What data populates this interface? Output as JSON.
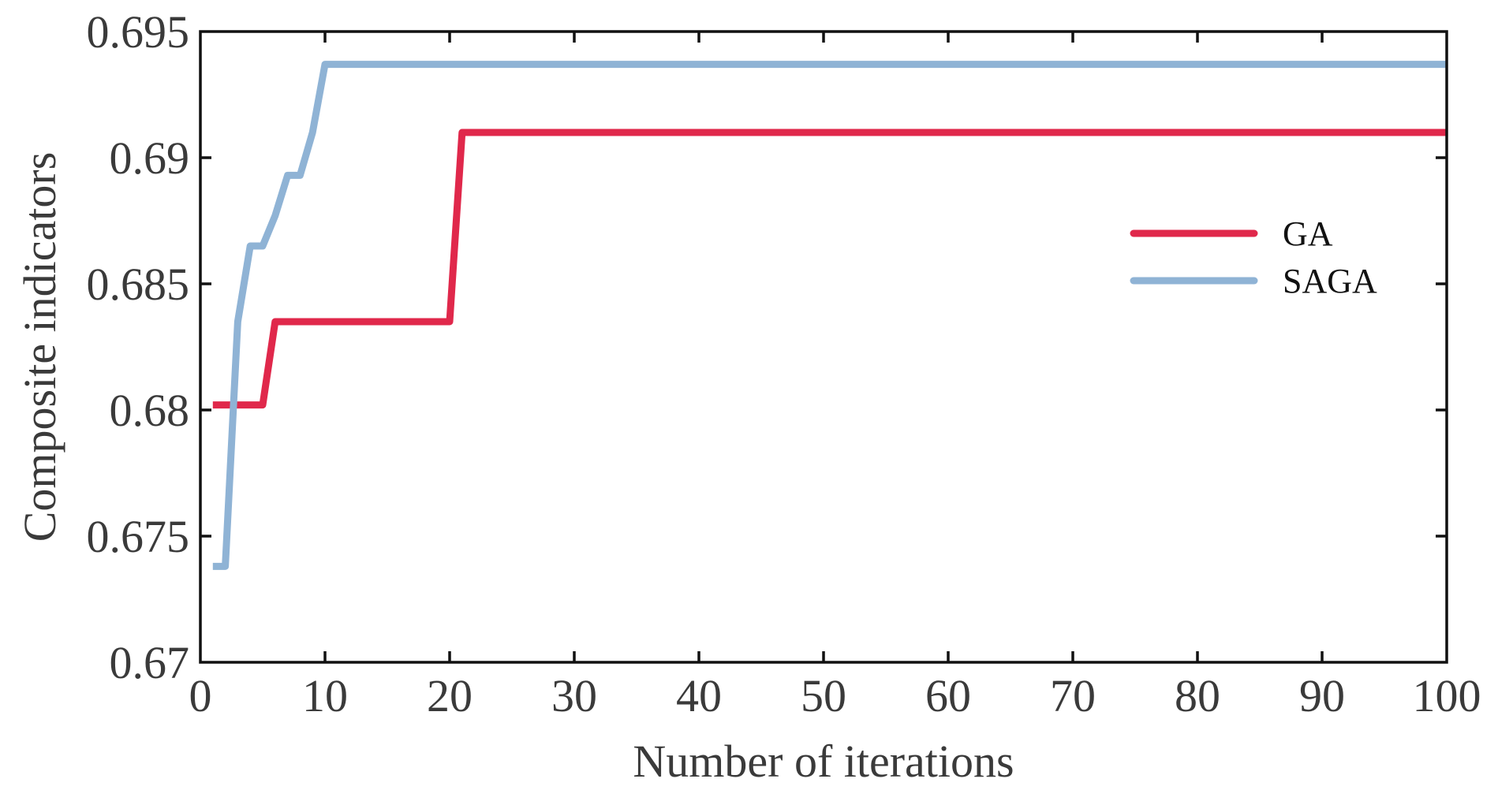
{
  "chart_data": {
    "type": "line",
    "title": "",
    "xlabel": "Number of iterations",
    "ylabel": "Composite indicators",
    "xlim": [
      0,
      100
    ],
    "ylim": [
      0.67,
      0.695
    ],
    "x_ticks": [
      0,
      10,
      20,
      30,
      40,
      50,
      60,
      70,
      80,
      90,
      100
    ],
    "x_tick_labels": [
      "0",
      "10",
      "20",
      "30",
      "40",
      "50",
      "60",
      "70",
      "80",
      "90",
      "100"
    ],
    "y_ticks": [
      0.67,
      0.675,
      0.68,
      0.685,
      0.69,
      0.695
    ],
    "y_tick_labels": [
      "0.67",
      "0.675",
      "0.68",
      "0.685",
      "0.69",
      "0.695"
    ],
    "grid": false,
    "legend_position": "right",
    "series": [
      {
        "name": "GA",
        "color": "#e0284b",
        "points": [
          [
            1,
            0.6802
          ],
          [
            5,
            0.6802
          ],
          [
            6,
            0.6835
          ],
          [
            20,
            0.6835
          ],
          [
            21,
            0.691
          ],
          [
            100,
            0.691
          ]
        ]
      },
      {
        "name": "SAGA",
        "color": "#8fb3d5",
        "points": [
          [
            1,
            0.6738
          ],
          [
            2,
            0.6738
          ],
          [
            3,
            0.6835
          ],
          [
            4,
            0.6865
          ],
          [
            5,
            0.6865
          ],
          [
            6,
            0.6877
          ],
          [
            7,
            0.6893
          ],
          [
            8,
            0.6893
          ],
          [
            9,
            0.691
          ],
          [
            10,
            0.6937
          ],
          [
            100,
            0.6937
          ]
        ]
      }
    ]
  }
}
